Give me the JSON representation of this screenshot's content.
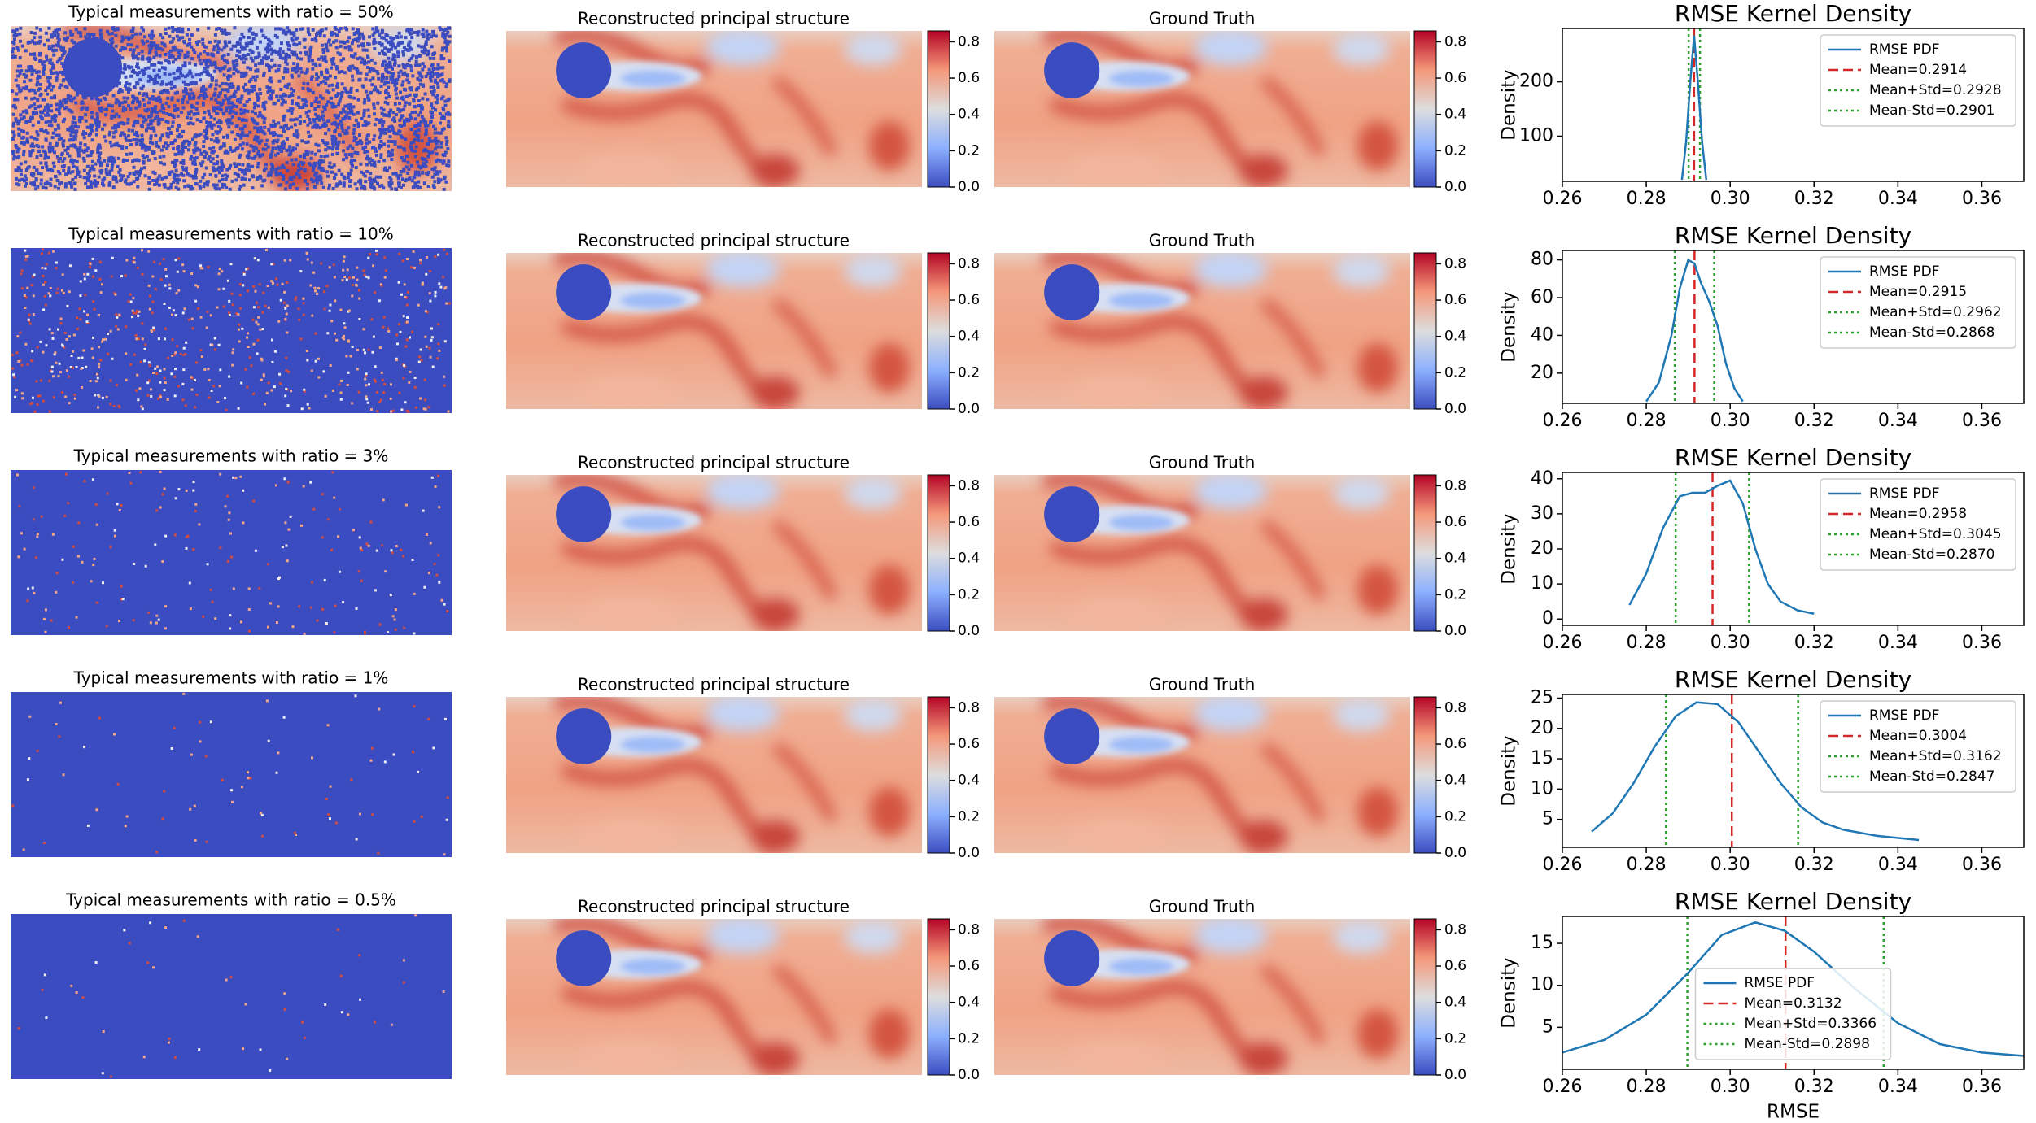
{
  "chart_data": [
    {
      "type": "line",
      "title": "RMSE Kernel Density",
      "ylabel": "Density",
      "measurement_title": "Typical measurements with ratio = 50%",
      "reconstruction_title": "Reconstructed principal structure",
      "truth_title": "Ground Truth",
      "colorbar_lim": [
        0,
        0.86
      ],
      "colorbar_ticks": [
        {
          "value": 0,
          "label": "0.0"
        },
        0.2,
        0.4,
        0.6,
        0.8
      ],
      "xlim": [
        0.26,
        0.37
      ],
      "xticks": [
        0.26,
        0.28,
        {
          "value": 0.3,
          "label": "0.30"
        },
        0.32,
        0.34,
        0.36
      ],
      "ylim": [
        17,
        298
      ],
      "yticks": [
        100,
        200
      ],
      "legend": "upper right",
      "series": [
        {
          "name": "RMSE PDF",
          "color": "#1f77b4",
          "x": [
            0.2885,
            0.2895,
            0.2905,
            0.2914,
            0.2923,
            0.2933,
            0.2943
          ],
          "values": [
            20,
            90,
            200,
            285,
            200,
            90,
            20
          ]
        }
      ],
      "vlines": [
        {
          "name": "Mean=0.2914",
          "x": 0.2914,
          "color": "#d62728",
          "style": "dashed"
        },
        {
          "name": "Mean+Std=0.2928",
          "x": 0.2928,
          "color": "#2ca02c",
          "style": "dotted"
        },
        {
          "name": "Mean-Std=0.2901",
          "x": 0.2901,
          "color": "#2ca02c",
          "style": "dotted"
        }
      ]
    },
    {
      "type": "line",
      "title": "RMSE Kernel Density",
      "ylabel": "Density",
      "measurement_title": "Typical measurements with ratio = 10%",
      "reconstruction_title": "Reconstructed principal structure",
      "truth_title": "Ground Truth",
      "colorbar_lim": [
        0,
        0.86
      ],
      "colorbar_ticks": [
        {
          "value": 0,
          "label": "0.0"
        },
        0.2,
        0.4,
        0.6,
        0.8
      ],
      "xlim": [
        0.26,
        0.37
      ],
      "xticks": [
        0.26,
        0.28,
        {
          "value": 0.3,
          "label": "0.30"
        },
        0.32,
        0.34,
        0.36
      ],
      "ylim": [
        4,
        85
      ],
      "yticks": [
        20,
        40,
        60,
        80
      ],
      "legend": "upper right",
      "series": [
        {
          "name": "RMSE PDF",
          "color": "#1f77b4",
          "x": [
            0.28,
            0.283,
            0.286,
            0.288,
            0.29,
            0.2915,
            0.293,
            0.295,
            0.297,
            0.299,
            0.301,
            0.303
          ],
          "values": [
            5,
            15,
            40,
            65,
            80,
            78,
            68,
            58,
            45,
            25,
            12,
            5
          ]
        }
      ],
      "vlines": [
        {
          "name": "Mean=0.2915",
          "x": 0.2915,
          "color": "#d62728",
          "style": "dashed"
        },
        {
          "name": "Mean+Std=0.2962",
          "x": 0.2962,
          "color": "#2ca02c",
          "style": "dotted"
        },
        {
          "name": "Mean-Std=0.2868",
          "x": 0.2868,
          "color": "#2ca02c",
          "style": "dotted"
        }
      ]
    },
    {
      "type": "line",
      "title": "RMSE Kernel Density",
      "ylabel": "Density",
      "measurement_title": "Typical measurements with ratio = 3%",
      "reconstruction_title": "Reconstructed principal structure",
      "truth_title": "Ground Truth",
      "colorbar_lim": [
        0,
        0.86
      ],
      "colorbar_ticks": [
        {
          "value": 0,
          "label": "0.0"
        },
        0.2,
        0.4,
        0.6,
        0.8
      ],
      "xlim": [
        0.26,
        0.37
      ],
      "xticks": [
        0.26,
        0.28,
        {
          "value": 0.3,
          "label": "0.30"
        },
        0.32,
        0.34,
        0.36
      ],
      "ylim": [
        -1.8,
        41.8
      ],
      "yticks": [
        0,
        10,
        20,
        30,
        40
      ],
      "legend": "upper right",
      "series": [
        {
          "name": "RMSE PDF",
          "color": "#1f77b4",
          "x": [
            0.276,
            0.28,
            0.284,
            0.288,
            0.291,
            0.294,
            0.297,
            0.3,
            0.303,
            0.306,
            0.309,
            0.312,
            0.316,
            0.32
          ],
          "values": [
            4,
            13,
            26,
            35,
            36,
            36,
            38,
            39.5,
            33,
            20,
            10,
            5,
            2.5,
            1.5
          ]
        }
      ],
      "vlines": [
        {
          "name": "Mean=0.2958",
          "x": 0.2958,
          "color": "#d62728",
          "style": "dashed"
        },
        {
          "name": "Mean+Std=0.3045",
          "x": 0.3045,
          "color": "#2ca02c",
          "style": "dotted"
        },
        {
          "name": "Mean-Std=0.2870",
          "x": 0.287,
          "color": "#2ca02c",
          "style": "dotted"
        }
      ]
    },
    {
      "type": "line",
      "title": "RMSE Kernel Density",
      "ylabel": "Density",
      "measurement_title": "Typical measurements with ratio = 1%",
      "reconstruction_title": "Reconstructed principal structure",
      "truth_title": "Ground Truth",
      "colorbar_lim": [
        0,
        0.86
      ],
      "colorbar_ticks": [
        {
          "value": 0,
          "label": "0.0"
        },
        0.2,
        0.4,
        0.6,
        0.8
      ],
      "xlim": [
        0.26,
        0.37
      ],
      "xticks": [
        0.26,
        0.28,
        {
          "value": 0.3,
          "label": "0.30"
        },
        0.32,
        0.34,
        0.36
      ],
      "ylim": [
        0.4,
        25.6
      ],
      "yticks": [
        5,
        10,
        15,
        20,
        25
      ],
      "legend": "upper right",
      "series": [
        {
          "name": "RMSE PDF",
          "color": "#1f77b4",
          "x": [
            0.267,
            0.272,
            0.277,
            0.282,
            0.287,
            0.292,
            0.297,
            0.302,
            0.307,
            0.312,
            0.317,
            0.322,
            0.327,
            0.335,
            0.345
          ],
          "values": [
            3,
            6,
            11,
            17,
            22,
            24.3,
            24,
            21,
            16,
            11,
            7,
            4.5,
            3.3,
            2.3,
            1.6
          ]
        }
      ],
      "vlines": [
        {
          "name": "Mean=0.3004",
          "x": 0.3004,
          "color": "#d62728",
          "style": "dashed"
        },
        {
          "name": "Mean+Std=0.3162",
          "x": 0.3162,
          "color": "#2ca02c",
          "style": "dotted"
        },
        {
          "name": "Mean-Std=0.2847",
          "x": 0.2847,
          "color": "#2ca02c",
          "style": "dotted"
        }
      ]
    },
    {
      "type": "line",
      "title": "RMSE Kernel Density",
      "ylabel": "Density",
      "xlabel": "RMSE",
      "measurement_title": "Typical measurements with ratio = 0.5%",
      "reconstruction_title": "Reconstructed principal structure",
      "truth_title": "Ground Truth",
      "colorbar_lim": [
        0,
        0.86
      ],
      "colorbar_ticks": [
        {
          "value": 0,
          "label": "0.0"
        },
        0.2,
        0.4,
        0.6,
        0.8
      ],
      "xlim": [
        0.26,
        0.37
      ],
      "xticks": [
        0.26,
        0.28,
        {
          "value": 0.3,
          "label": "0.30"
        },
        0.32,
        0.34,
        0.36
      ],
      "ylim": [
        0,
        18.2
      ],
      "yticks": [
        5,
        10,
        15
      ],
      "legend": "lower center",
      "series": [
        {
          "name": "RMSE PDF",
          "color": "#1f77b4",
          "x": [
            0.26,
            0.27,
            0.28,
            0.29,
            0.298,
            0.306,
            0.313,
            0.32,
            0.33,
            0.34,
            0.35,
            0.36,
            0.37
          ],
          "values": [
            2,
            3.5,
            6.5,
            11.5,
            16,
            17.5,
            16.5,
            14,
            9.5,
            5.5,
            3,
            2,
            1.6
          ]
        }
      ],
      "vlines": [
        {
          "name": "Mean=0.3132",
          "x": 0.3132,
          "color": "#d62728",
          "style": "dashed"
        },
        {
          "name": "Mean+Std=0.3366",
          "x": 0.3366,
          "color": "#2ca02c",
          "style": "dotted"
        },
        {
          "name": "Mean-Std=0.2898",
          "x": 0.2898,
          "color": "#2ca02c",
          "style": "dotted"
        }
      ]
    }
  ]
}
